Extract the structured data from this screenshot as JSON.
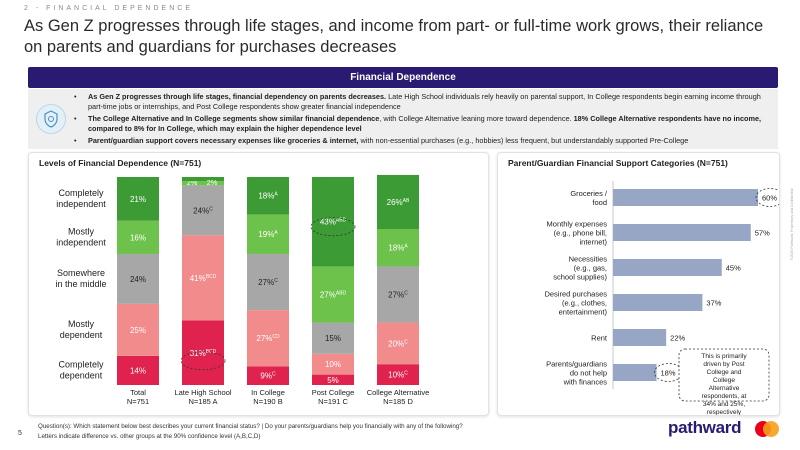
{
  "eyebrow": "2 - FINANCIAL DEPENDENCE",
  "headline": "As Gen Z progresses through life stages, and income from part- or full-time work grows, their reliance on parents and guardians for purchases decreases",
  "banner": "Financial Dependence",
  "bullets": [
    {
      "bold": "As Gen Z progresses through life stages, financial dependency on parents decreases.",
      "text": " Late High School individuals rely heavily on parental support, In College respondents begin earning income through part-time jobs or internships, and Post College respondents show greater financial independence"
    },
    {
      "bold": "The College Alternative and In College segments show similar financial dependence",
      "text": ", with College Alternative leaning more toward dependence. ",
      "bold2": "18% College Alternative respondents have no income, compared to 8% for In College, which may explain the higher dependence level"
    },
    {
      "bold": "Parent/guardian support covers necessary expenses like groceries & internet,",
      "text": " with non-essential purchases (e.g., hobbies) less frequent, but understandably supported Pre-College"
    }
  ],
  "footer": {
    "question": "Question(s): Which statement below best describes your current financial status? | Do your parents/guardians help you financially with any of the following?",
    "note": "Letters indicate difference vs. other groups at the 90% confidence level (A,B,C,D)",
    "page": "5",
    "brand": "pathward",
    "side": "©2025 Pathward, Proprietary and Confidential"
  },
  "chart_data": [
    {
      "type": "bar",
      "stacked": true,
      "title": "Levels of Financial Dependence (N=751)",
      "categories": [
        "Total\nN=751",
        "Late High School\nN=185 A",
        "In College\nN=190 B",
        "Post College\nN=191 C",
        "College Alternative\nN=185 D"
      ],
      "series": [
        {
          "name": "Completely dependent",
          "color": "#e0234e",
          "values": [
            14,
            31,
            9,
            5,
            10
          ],
          "labels": [
            "14%",
            "31%",
            "9%",
            "5%",
            "10%"
          ],
          "sups": [
            "",
            "BCD",
            "C",
            "",
            "C"
          ]
        },
        {
          "name": "Mostly dependent",
          "color": "#f28c8c",
          "values": [
            25,
            41,
            27,
            10,
            20
          ],
          "labels": [
            "25%",
            "41%",
            "27%",
            "10%",
            "20%"
          ],
          "sups": [
            "",
            "BCD",
            "CD",
            "",
            "C"
          ]
        },
        {
          "name": "Somewhere in the middle",
          "color": "#a7a7a7",
          "values": [
            24,
            24,
            27,
            15,
            27
          ],
          "labels": [
            "24%",
            "24%",
            "27%",
            "15%",
            "27%"
          ],
          "sups": [
            "",
            "C",
            "C",
            "",
            "C"
          ]
        },
        {
          "name": "Mostly independent",
          "color": "#6cc24a",
          "values": [
            16,
            2,
            19,
            27,
            18
          ],
          "labels": [
            "16%",
            "2%",
            "19%",
            "27%",
            "18%"
          ],
          "sups": [
            "",
            "",
            "A",
            "ABD",
            "A"
          ]
        },
        {
          "name": "Completely independent",
          "color": "#3c9b35",
          "values": [
            21,
            2,
            18,
            43,
            26
          ],
          "labels": [
            "21%",
            "2%",
            "18%",
            "43%",
            "26%"
          ],
          "sups": [
            "",
            "",
            "A",
            "ABD",
            "AB"
          ]
        }
      ],
      "ylim": [
        0,
        100
      ]
    },
    {
      "type": "bar",
      "orientation": "horizontal",
      "title": "Parent/Guardian Financial Support Categories (N=751)",
      "categories": [
        "Groceries /\nfood",
        "Monthly expenses\n(e.g., phone bill,\ninternet)",
        "Necessities\n(e.g., gas,\nschool supplies)",
        "Desired purchases\n(e.g., clothes,\nentertainment)",
        "Rent",
        "Parents/guardians\ndo not help\nwith finances"
      ],
      "values": [
        60,
        57,
        45,
        37,
        22,
        18
      ],
      "labels": [
        "60%",
        "57%",
        "45%",
        "37%",
        "22%",
        "18%"
      ],
      "color": "#97a6c4",
      "xlim": [
        0,
        100
      ],
      "annotation": "This is primarily driven by Post College and College Alternative respondents, at 34% and 25%, respectively"
    }
  ]
}
